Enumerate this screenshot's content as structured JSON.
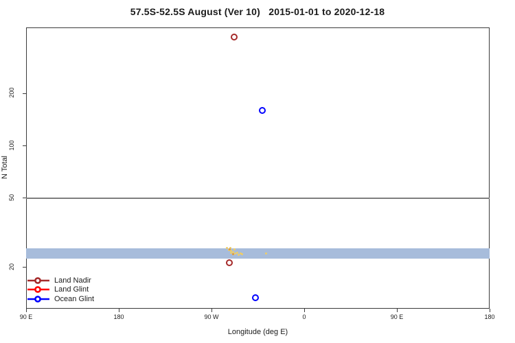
{
  "title": "57.5S-52.5S August (Ver 10)   2015-01-01 to 2020-12-18",
  "chart_data": {
    "type": "scatter",
    "title": "57.5S-52.5S August (Ver 10)   2015-01-01 to 2020-12-18",
    "xlabel": "Longitude (deg E)",
    "ylabel": "N Total",
    "x_axis": {
      "min": 90,
      "max": 540,
      "note": "longitude axis wraps eastward starting at 90E",
      "ticks": [
        {
          "value": 90,
          "label": "90 E"
        },
        {
          "value": 180,
          "label": "180"
        },
        {
          "value": 270,
          "label": "90 W"
        },
        {
          "value": 360,
          "label": "0"
        },
        {
          "value": 450,
          "label": "90 E"
        },
        {
          "value": 540,
          "label": "180"
        }
      ]
    },
    "y_axis": {
      "scale": "log",
      "min": 11.6,
      "max": 478,
      "ticks": [
        {
          "value": 20,
          "label": "20"
        },
        {
          "value": 50,
          "label": "50"
        },
        {
          "value": 100,
          "label": "100"
        },
        {
          "value": 200,
          "label": "200"
        }
      ]
    },
    "reference_line": {
      "y": 50,
      "color": "#7e7e7e",
      "thickness": 2
    },
    "band": {
      "y_low": 22.5,
      "y_high": 25.7,
      "color": "#a7bcdb"
    },
    "series": [
      {
        "name": "Land Nadir",
        "color": "#a52a2a",
        "marker": "open-circle",
        "in_legend": true,
        "points": [
          {
            "x": 291.8,
            "y": 420
          },
          {
            "x": 287.3,
            "y": 21.4
          }
        ]
      },
      {
        "name": "Land Glint",
        "color": "#ff0000",
        "marker": "open-circle",
        "in_legend": true,
        "points": []
      },
      {
        "name": "Ocean Glint",
        "color": "#0000ff",
        "marker": "open-circle",
        "in_legend": true,
        "points": [
          {
            "x": 319.1,
            "y": 160
          },
          {
            "x": 312.9,
            "y": 13.4
          }
        ]
      },
      {
        "name": "unlabeled-cluster-gold",
        "color": "#eecd68",
        "marker": "small-dot",
        "in_legend": false,
        "points": [
          {
            "x": 285.0,
            "y": 25.8
          },
          {
            "x": 286.7,
            "y": 25.2
          },
          {
            "x": 288.0,
            "y": 26.0
          },
          {
            "x": 288.7,
            "y": 25.0
          },
          {
            "x": 289.3,
            "y": 24.2
          },
          {
            "x": 290.7,
            "y": 24.6
          },
          {
            "x": 292.0,
            "y": 25.4
          },
          {
            "x": 293.3,
            "y": 24.0
          },
          {
            "x": 294.7,
            "y": 24.4
          },
          {
            "x": 296.0,
            "y": 23.6
          },
          {
            "x": 298.0,
            "y": 24.0
          },
          {
            "x": 299.3,
            "y": 23.8
          },
          {
            "x": 322.7,
            "y": 24.0
          }
        ]
      },
      {
        "name": "unlabeled-cluster-orange",
        "color": "#e29a3a",
        "marker": "small-dot",
        "in_legend": false,
        "points": [
          {
            "x": 287.5,
            "y": 25.5
          },
          {
            "x": 291.0,
            "y": 23.9
          }
        ]
      }
    ],
    "legend": {
      "position": "bottom-left",
      "items": [
        {
          "label": "Land Nadir",
          "color": "#a52a2a"
        },
        {
          "label": "Land Glint",
          "color": "#ff0000"
        },
        {
          "label": "Ocean Glint",
          "color": "#0000ff"
        }
      ]
    }
  }
}
